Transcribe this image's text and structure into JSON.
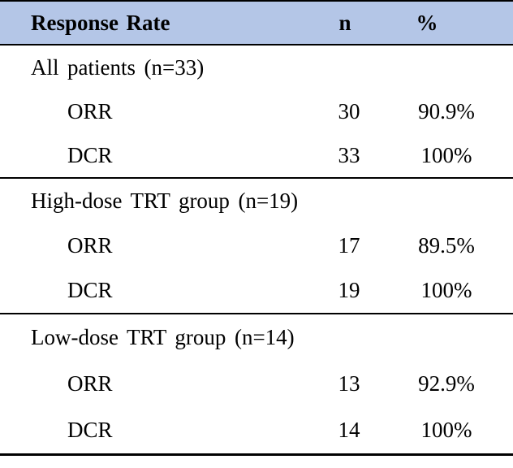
{
  "table": {
    "header": {
      "label": "Response Rate",
      "n": "n",
      "pct": "%"
    },
    "sections": [
      {
        "title": "All patients (n=33)",
        "rows": [
          {
            "label": "ORR",
            "n": "30",
            "pct": "90.9%"
          },
          {
            "label": "DCR",
            "n": "33",
            "pct": "100%"
          }
        ]
      },
      {
        "title": "High-dose TRT group (n=19)",
        "rows": [
          {
            "label": "ORR",
            "n": "17",
            "pct": "89.5%"
          },
          {
            "label": "DCR",
            "n": "19",
            "pct": "100%"
          }
        ]
      },
      {
        "title": "Low-dose TRT group (n=14)",
        "rows": [
          {
            "label": "ORR",
            "n": "13",
            "pct": "92.9%"
          },
          {
            "label": "DCR",
            "n": "14",
            "pct": "100%"
          }
        ]
      }
    ],
    "style": {
      "header_bg": "#b4c6e7",
      "border_color": "#000000",
      "text_color": "#000000"
    }
  },
  "chart_data": {
    "type": "table",
    "title": "Response Rate",
    "columns": [
      "Response Rate",
      "n",
      "%"
    ],
    "rows": [
      [
        "All patients (n=33)",
        "",
        ""
      ],
      [
        "ORR",
        30,
        "90.9%"
      ],
      [
        "DCR",
        33,
        "100%"
      ],
      [
        "High-dose TRT group (n=19)",
        "",
        ""
      ],
      [
        "ORR",
        17,
        "89.5%"
      ],
      [
        "DCR",
        19,
        "100%"
      ],
      [
        "Low-dose TRT group (n=14)",
        "",
        ""
      ],
      [
        "ORR",
        13,
        "92.9%"
      ],
      [
        "DCR",
        14,
        "100%"
      ]
    ]
  }
}
